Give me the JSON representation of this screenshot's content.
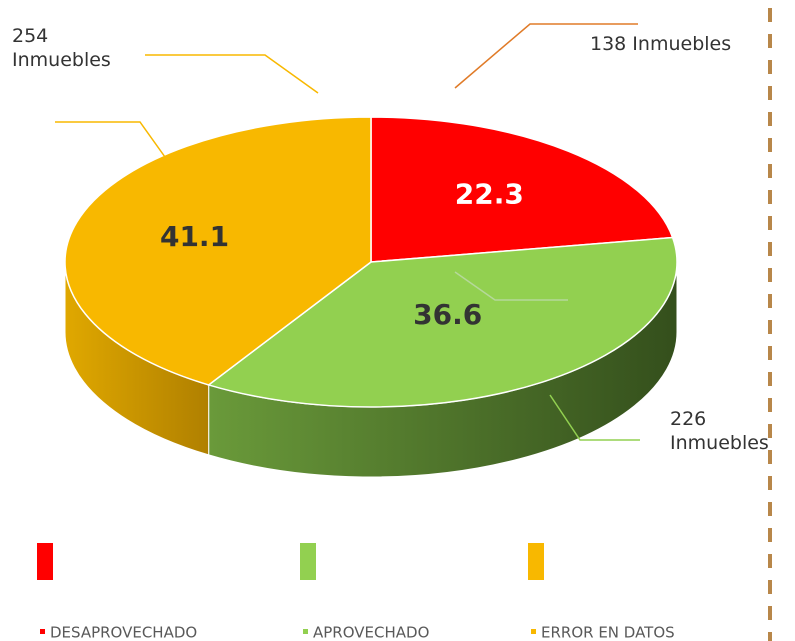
{
  "chart_data": {
    "type": "pie",
    "categories": [
      "DESAPROVECHADO",
      "APROVECHADO",
      "ERROR EN DATOS"
    ],
    "values": [
      22.3,
      36.6,
      41.1
    ],
    "colors": [
      "#ff0000",
      "#92d050",
      "#f8b800"
    ],
    "annotations": [
      {
        "text": "138 Inmuebles"
      },
      {
        "text": "226 Inmuebles"
      },
      {
        "text": "254 Inmuebles"
      }
    ],
    "legend": "bottom"
  }
}
